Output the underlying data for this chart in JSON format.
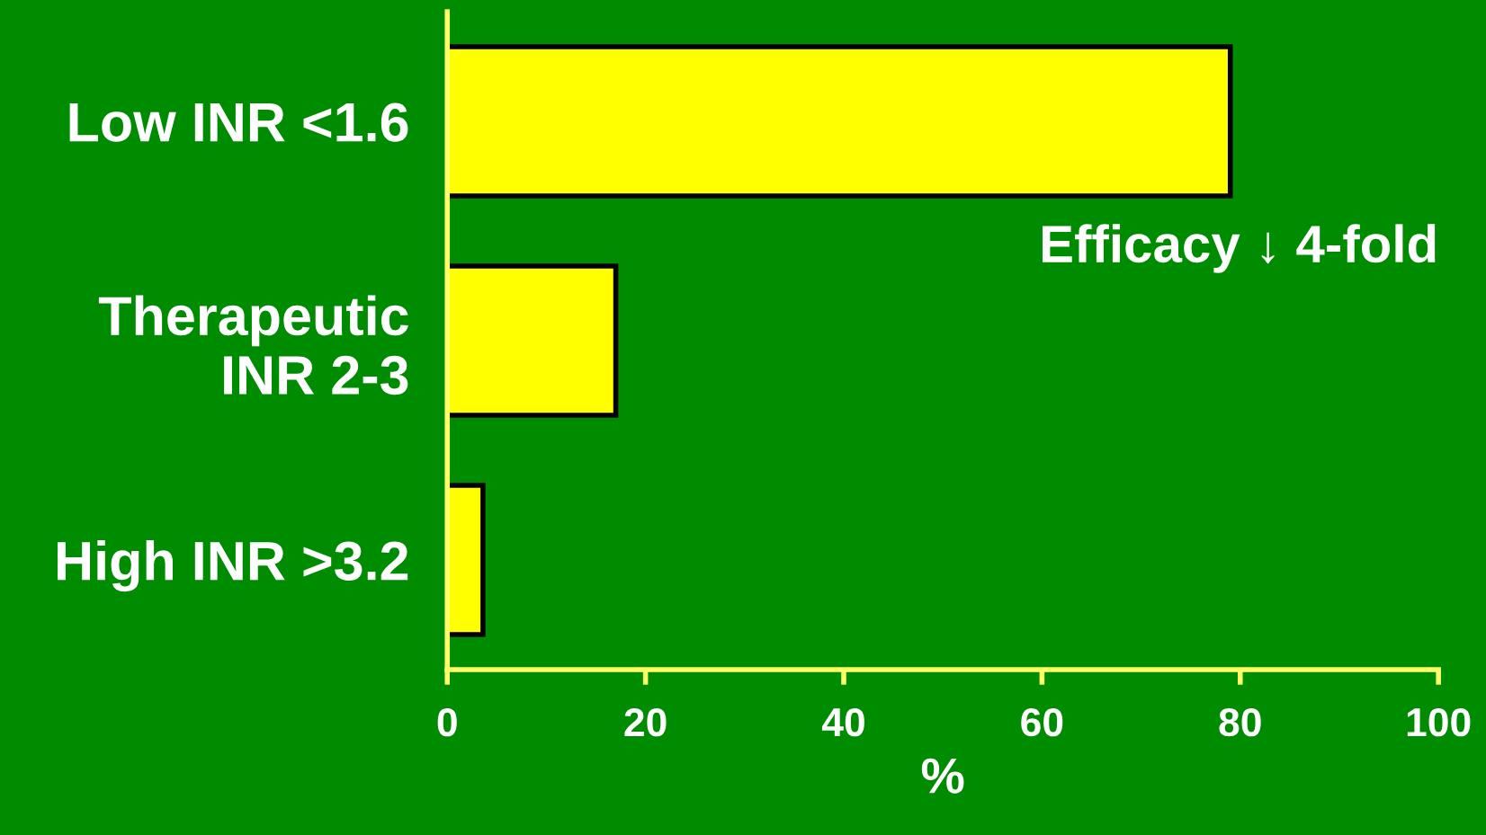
{
  "chart_data": {
    "type": "bar",
    "orientation": "horizontal",
    "xlabel": "%",
    "categories": [
      "Low INR <1.6",
      "Therapeutic\nINR 2-3",
      "High INR >3.2"
    ],
    "values": [
      79,
      17,
      3.6
    ],
    "color": "#ffff00",
    "xlim": [
      0,
      100
    ],
    "xticks": [
      0,
      20,
      40,
      60,
      80,
      100
    ],
    "grid": false,
    "annotations": [
      "Efficacy ↓ 4-fold"
    ]
  }
}
